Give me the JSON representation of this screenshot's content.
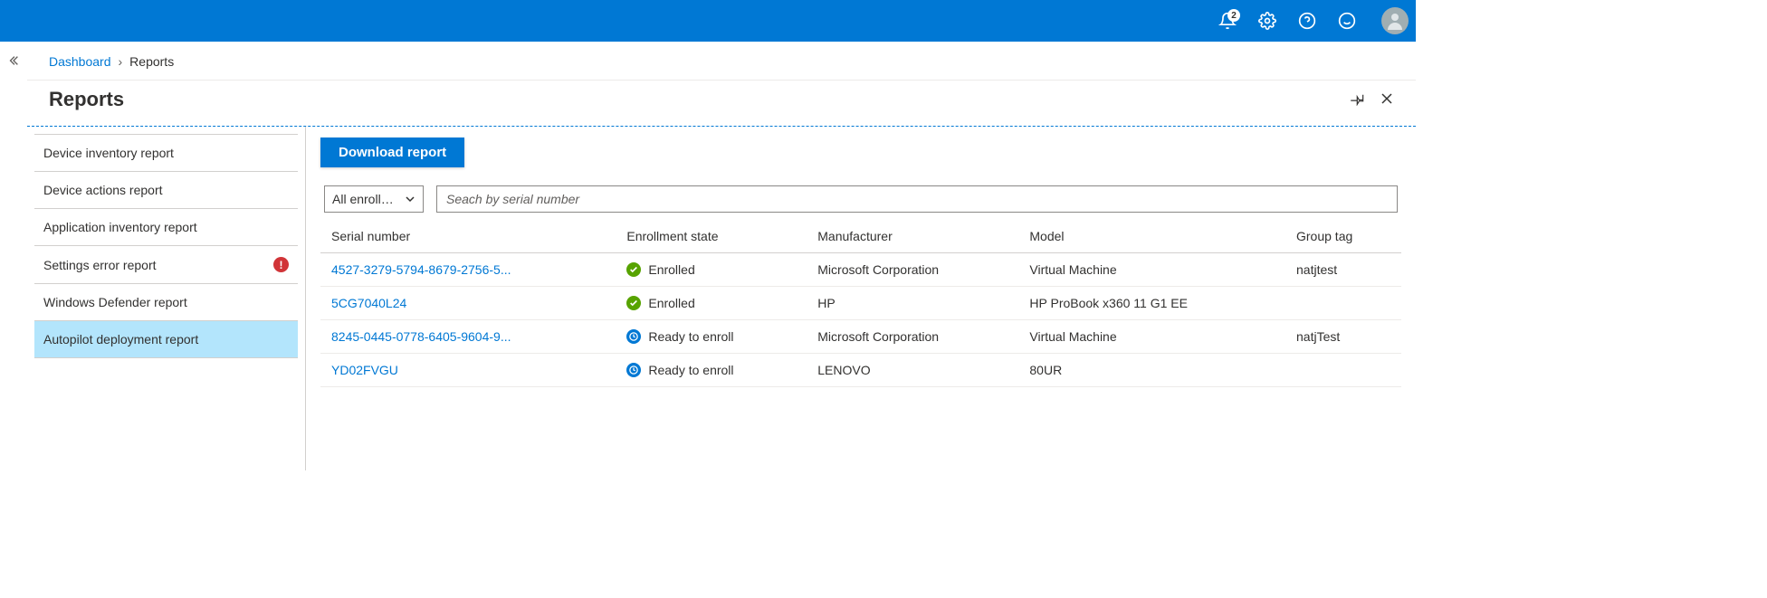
{
  "topbar": {
    "notification_count": "2"
  },
  "breadcrumb": {
    "root": "Dashboard",
    "current": "Reports"
  },
  "blade": {
    "title": "Reports"
  },
  "sidebar": {
    "items": [
      {
        "label": "Device inventory report",
        "error": false,
        "active": false
      },
      {
        "label": "Device actions report",
        "error": false,
        "active": false
      },
      {
        "label": "Application inventory report",
        "error": false,
        "active": false
      },
      {
        "label": "Settings error report",
        "error": true,
        "active": false
      },
      {
        "label": "Windows Defender report",
        "error": false,
        "active": false
      },
      {
        "label": "Autopilot deployment report",
        "error": false,
        "active": true
      }
    ]
  },
  "toolbar": {
    "download_label": "Download report",
    "filter_label": "All enrollm...",
    "search_placeholder": "Seach by serial number"
  },
  "table": {
    "columns": [
      "Serial number",
      "Enrollment state",
      "Manufacturer",
      "Model",
      "Group tag"
    ],
    "rows": [
      {
        "serial": "4527-3279-5794-8679-2756-5...",
        "state": "Enrolled",
        "state_type": "enrolled",
        "manufacturer": "Microsoft Corporation",
        "model": "Virtual Machine",
        "group_tag": "natjtest"
      },
      {
        "serial": "5CG7040L24",
        "state": "Enrolled",
        "state_type": "enrolled",
        "manufacturer": "HP",
        "model": "HP ProBook x360 11 G1 EE",
        "group_tag": ""
      },
      {
        "serial": "8245-0445-0778-6405-9604-9...",
        "state": "Ready to enroll",
        "state_type": "ready",
        "manufacturer": "Microsoft Corporation",
        "model": "Virtual Machine",
        "group_tag": "natjTest"
      },
      {
        "serial": "YD02FVGU",
        "state": "Ready to enroll",
        "state_type": "ready",
        "manufacturer": "LENOVO",
        "model": "80UR",
        "group_tag": ""
      }
    ]
  },
  "colors": {
    "brand": "#0078d4",
    "active_bg": "#b3e5fc",
    "error_red": "#d13438",
    "success_green": "#57a300"
  }
}
